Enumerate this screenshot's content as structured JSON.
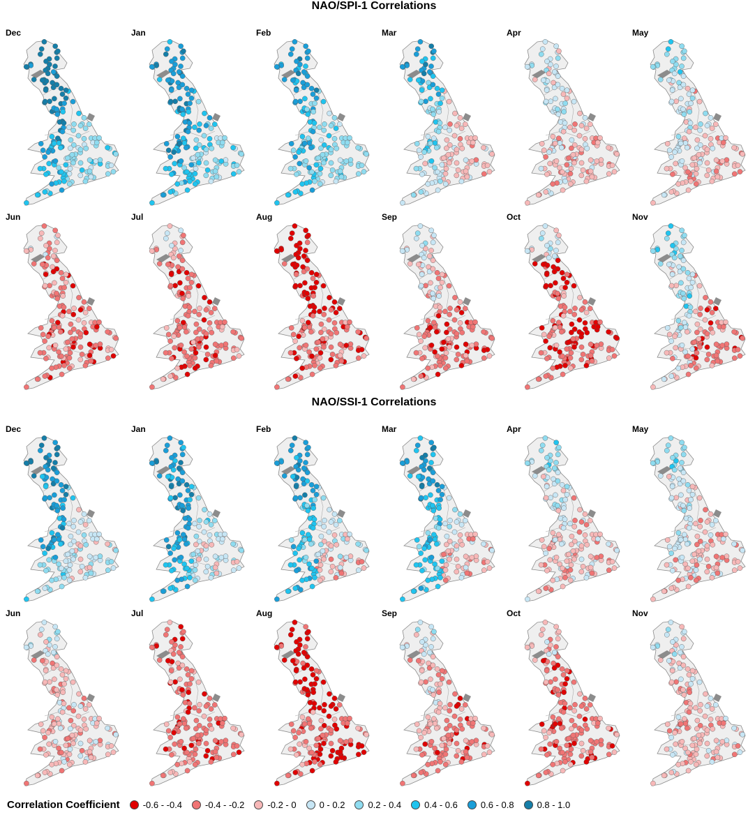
{
  "sections": [
    {
      "title": "NAO/SPI-1 Correlations",
      "maps": [
        {
          "month": "Dec",
          "north": [
            7,
            7,
            6,
            6,
            5
          ],
          "south": [
            6,
            5,
            4,
            4,
            4
          ]
        },
        {
          "month": "Jan",
          "north": [
            6,
            6,
            6,
            6,
            5
          ],
          "south": [
            6,
            5,
            5,
            4,
            4
          ]
        },
        {
          "month": "Feb",
          "north": [
            6,
            6,
            5,
            5,
            5
          ],
          "south": [
            5,
            5,
            4,
            4,
            4
          ]
        },
        {
          "month": "Mar",
          "north": [
            6,
            5,
            4,
            4,
            3
          ],
          "south": [
            3,
            2,
            2,
            2,
            2
          ]
        },
        {
          "month": "Apr",
          "north": [
            3,
            3,
            3,
            2,
            2
          ],
          "south": [
            3,
            2,
            2,
            2,
            2
          ]
        },
        {
          "month": "May",
          "north": [
            4,
            3,
            3,
            3,
            2
          ],
          "south": [
            2,
            2,
            3,
            2,
            2
          ]
        },
        {
          "month": "Jun",
          "north": [
            2,
            1,
            1,
            1,
            1
          ],
          "south": [
            0,
            0,
            1,
            1,
            1
          ]
        },
        {
          "month": "Jul",
          "north": [
            2,
            1,
            1,
            1,
            1
          ],
          "south": [
            1,
            0,
            1,
            1,
            1
          ]
        },
        {
          "month": "Aug",
          "north": [
            0,
            0,
            0,
            1,
            1
          ],
          "south": [
            0,
            1,
            0,
            1,
            1
          ]
        },
        {
          "month": "Sep",
          "north": [
            3,
            2,
            2,
            1,
            1
          ],
          "south": [
            1,
            1,
            1,
            1,
            1
          ]
        },
        {
          "month": "Oct",
          "north": [
            3,
            0,
            1,
            1,
            1
          ],
          "south": [
            0,
            0,
            1,
            0,
            1
          ]
        },
        {
          "month": "Nov",
          "north": [
            4,
            3,
            4,
            3,
            2
          ],
          "south": [
            2,
            1,
            1,
            1,
            1
          ]
        }
      ]
    },
    {
      "title": "NAO/SSI-1 Correlations",
      "maps": [
        {
          "month": "Dec",
          "north": [
            7,
            6,
            6,
            6,
            4
          ],
          "south": [
            5,
            4,
            3,
            3,
            3
          ]
        },
        {
          "month": "Jan",
          "north": [
            6,
            6,
            6,
            6,
            5
          ],
          "south": [
            6,
            4,
            4,
            3,
            3
          ]
        },
        {
          "month": "Feb",
          "north": [
            6,
            6,
            5,
            5,
            5
          ],
          "south": [
            4,
            4,
            3,
            3,
            2
          ]
        },
        {
          "month": "Mar",
          "north": [
            6,
            6,
            5,
            5,
            5
          ],
          "south": [
            4,
            3,
            3,
            2,
            2
          ]
        },
        {
          "month": "Apr",
          "north": [
            4,
            3,
            3,
            2,
            2
          ],
          "south": [
            2,
            2,
            2,
            2,
            2
          ]
        },
        {
          "month": "May",
          "north": [
            4,
            3,
            3,
            3,
            2
          ],
          "south": [
            3,
            2,
            2,
            2,
            2
          ]
        },
        {
          "month": "Jun",
          "north": [
            3,
            2,
            2,
            2,
            2
          ],
          "south": [
            2,
            2,
            2,
            2,
            2
          ]
        },
        {
          "month": "Jul",
          "north": [
            1,
            1,
            1,
            1,
            1
          ],
          "south": [
            0,
            1,
            1,
            1,
            1
          ]
        },
        {
          "month": "Aug",
          "north": [
            0,
            0,
            0,
            1,
            1
          ],
          "south": [
            1,
            1,
            0,
            1,
            0
          ]
        },
        {
          "month": "Sep",
          "north": [
            3,
            2,
            2,
            2,
            1
          ],
          "south": [
            2,
            1,
            1,
            1,
            1
          ]
        },
        {
          "month": "Oct",
          "north": [
            2,
            1,
            1,
            1,
            1
          ],
          "south": [
            1,
            1,
            1,
            1,
            1
          ]
        },
        {
          "month": "Nov",
          "north": [
            3,
            2,
            2,
            2,
            2
          ],
          "south": [
            3,
            2,
            2,
            2,
            2
          ]
        }
      ]
    }
  ],
  "legend": {
    "title": "Correlation Coefficient",
    "classes": [
      {
        "label": "-0.6 - -0.4",
        "color": "#e00000"
      },
      {
        "label": "-0.4 - -0.2",
        "color": "#f07575"
      },
      {
        "label": "-0.2 - 0",
        "color": "#f7b8b8"
      },
      {
        "label": "0 - 0.2",
        "color": "#c7e6f5"
      },
      {
        "label": "0.2 - 0.4",
        "color": "#8fdcf0"
      },
      {
        "label": "0.4 - 0.6",
        "color": "#20c4ef"
      },
      {
        "label": "0.6 - 0.8",
        "color": "#1a9ed8"
      },
      {
        "label": "0.8 - 1.0",
        "color": "#157ea8"
      }
    ]
  }
}
